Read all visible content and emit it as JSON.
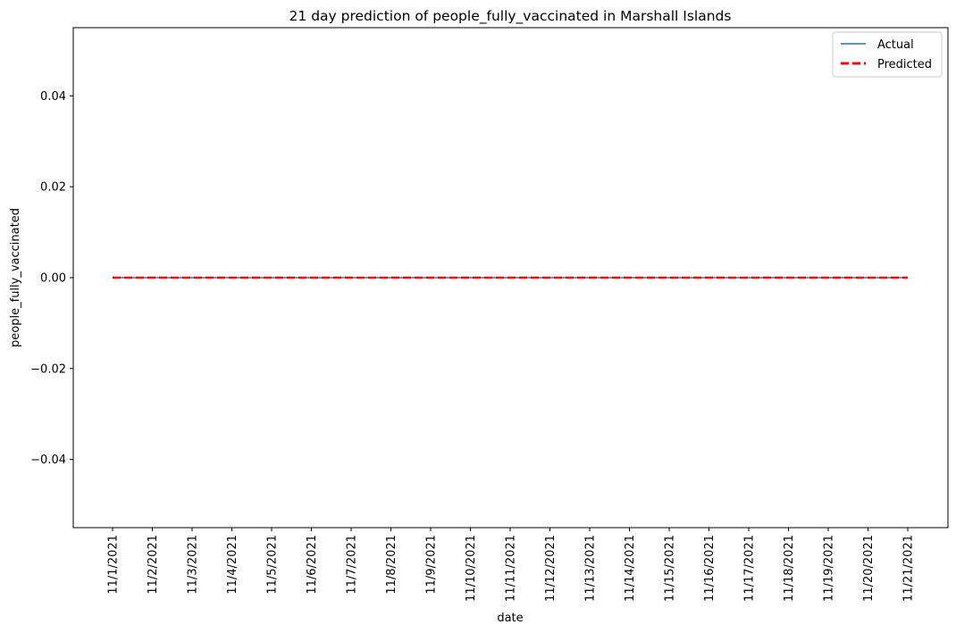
{
  "chart_data": {
    "type": "line",
    "title": "21 day prediction of people_fully_vaccinated in Marshall Islands",
    "xlabel": "date",
    "ylabel": "people_fully_vaccinated",
    "x": [
      "11/1/2021",
      "11/2/2021",
      "11/3/2021",
      "11/4/2021",
      "11/5/2021",
      "11/6/2021",
      "11/7/2021",
      "11/8/2021",
      "11/9/2021",
      "11/10/2021",
      "11/11/2021",
      "11/12/2021",
      "11/13/2021",
      "11/14/2021",
      "11/15/2021",
      "11/16/2021",
      "11/17/2021",
      "11/18/2021",
      "11/19/2021",
      "11/20/2021",
      "11/21/2021"
    ],
    "ylim": [
      -0.055,
      0.055
    ],
    "yticks": [
      0.04,
      0.02,
      0.0,
      -0.02,
      -0.04
    ],
    "ytick_labels": [
      "0.04",
      "0.02",
      "0.00",
      "−0.02",
      "−0.04"
    ],
    "grid": false,
    "legend_position": "top-right",
    "series": [
      {
        "name": "Actual",
        "color": "#1f77b4",
        "style": "solid",
        "values": [
          0,
          0,
          0,
          0,
          0,
          0,
          0,
          0,
          0,
          0,
          0,
          0,
          0,
          0,
          0,
          0,
          0,
          0,
          0,
          0,
          0
        ]
      },
      {
        "name": "Predicted",
        "color": "#ff0000",
        "style": "dashed",
        "values": [
          0,
          0,
          0,
          0,
          0,
          0,
          0,
          0,
          0,
          0,
          0,
          0,
          0,
          0,
          0,
          0,
          0,
          0,
          0,
          0,
          0
        ]
      }
    ]
  }
}
